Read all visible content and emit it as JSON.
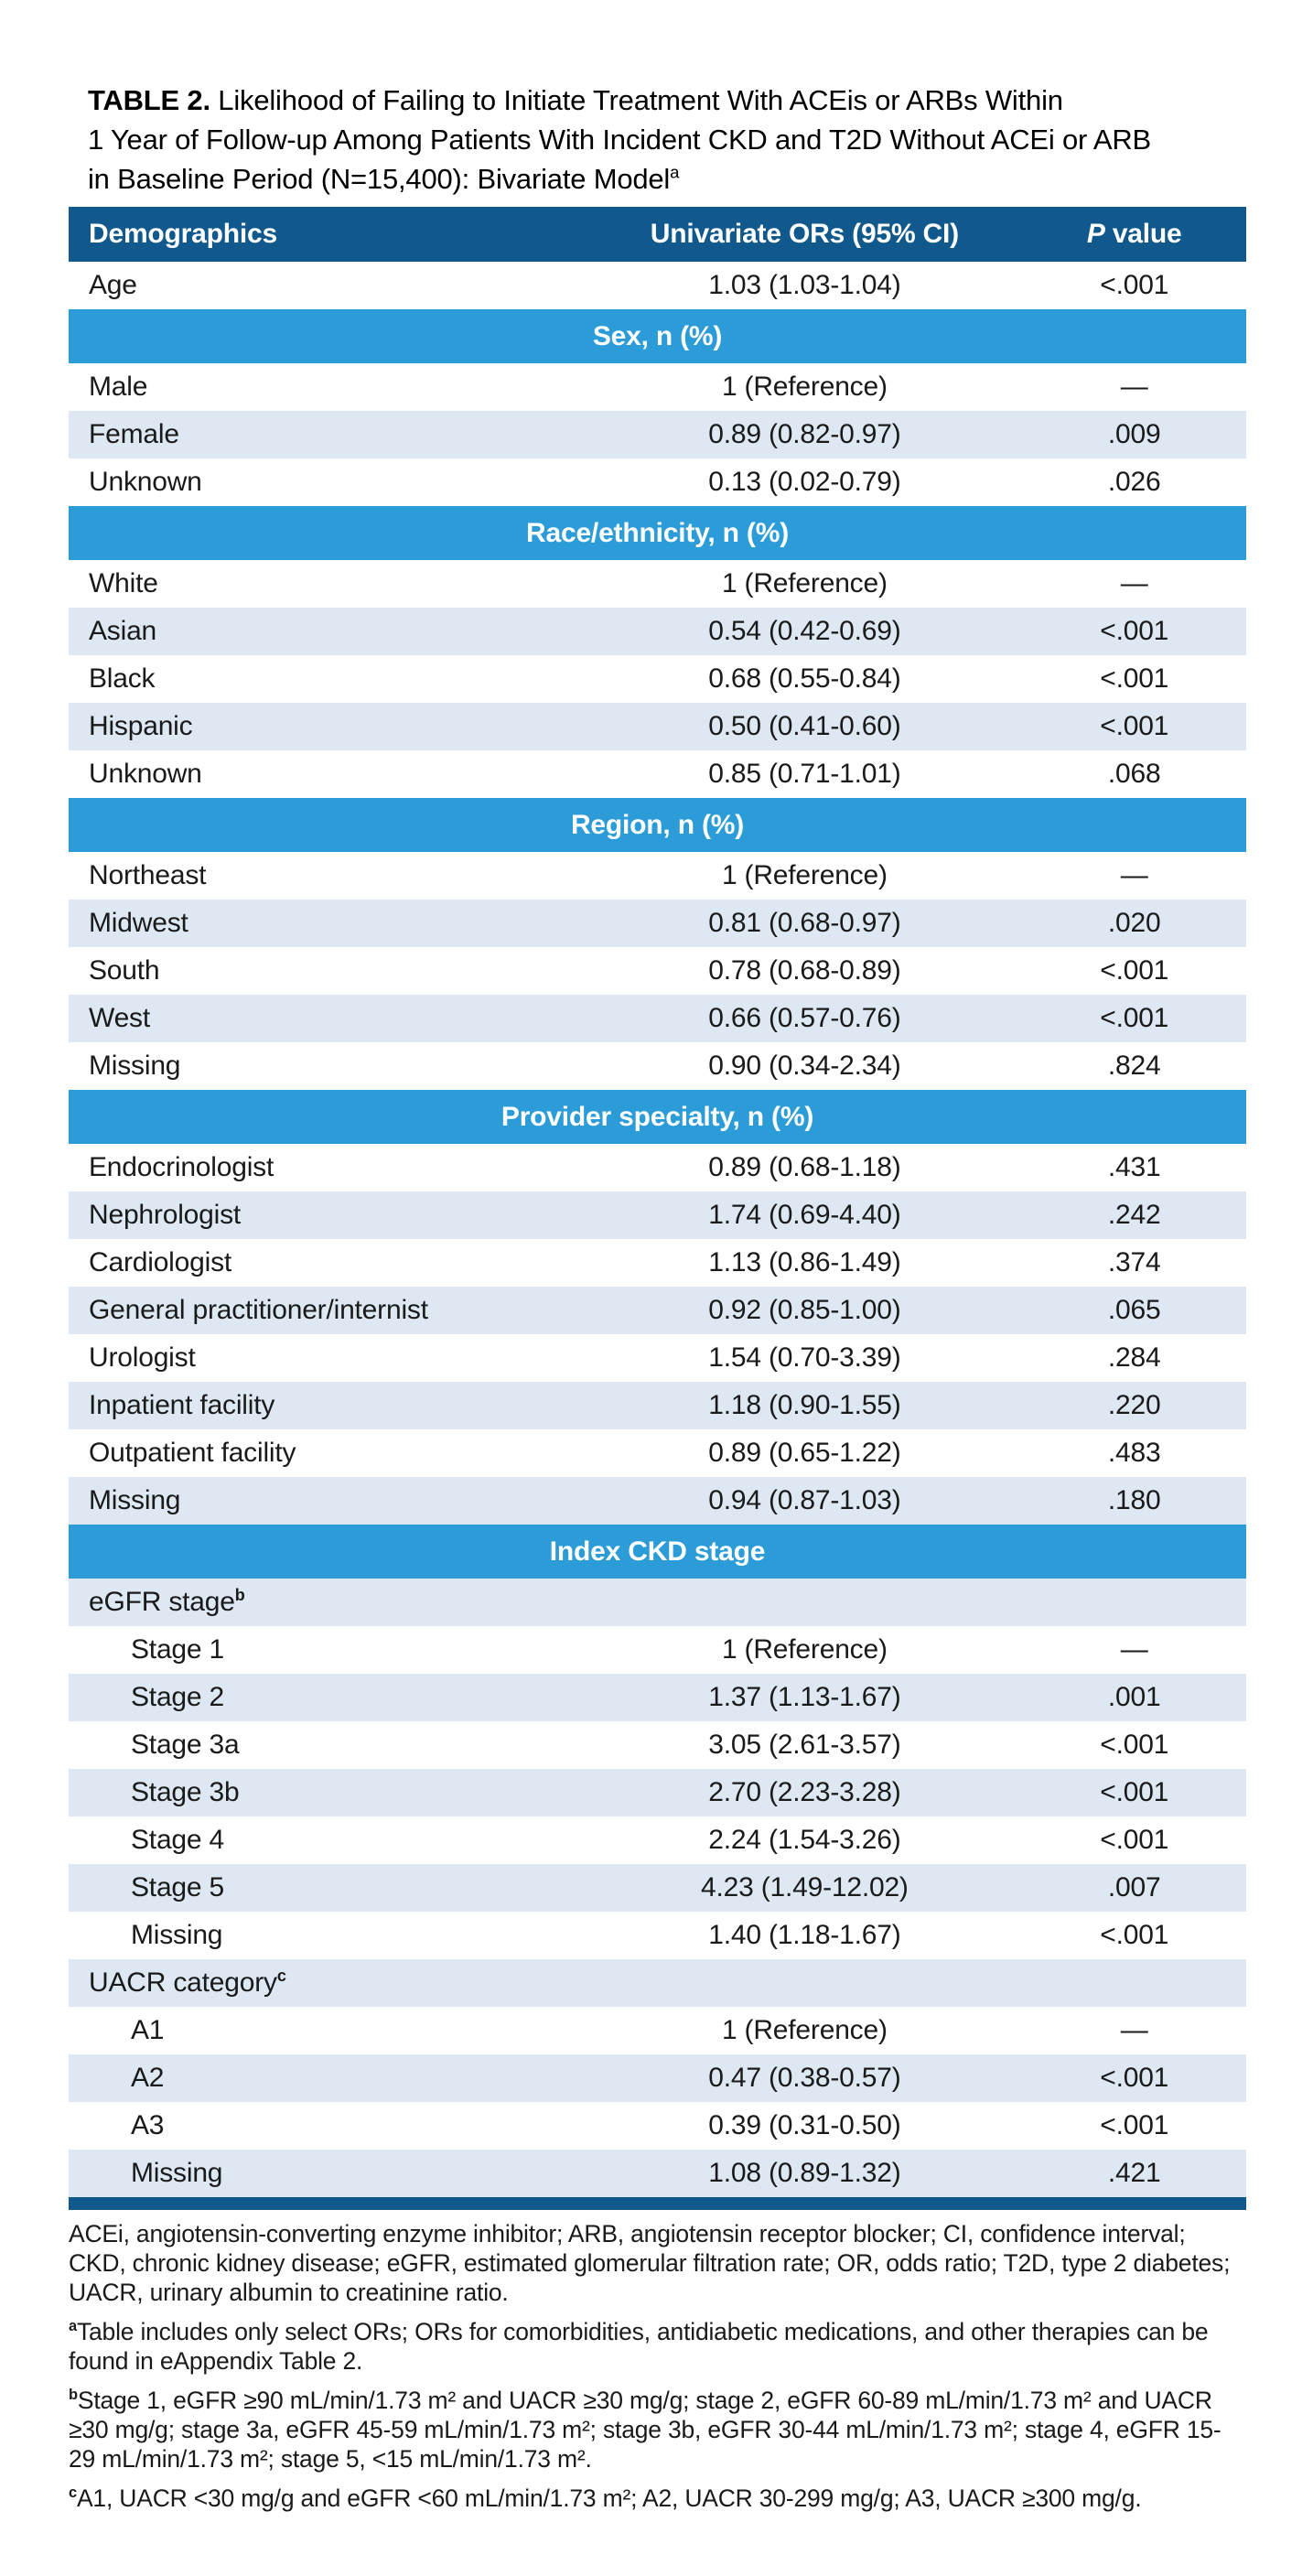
{
  "title": {
    "line1_label": "TABLE 2.",
    "line1_rest": " Likelihood of Failing to Initiate Treatment With ACEis or ARBs Within",
    "line2": "1 Year of Follow-up Among Patients With Incident CKD and T2D Without ACEi or ARB",
    "line3": "in Baseline Period (N=15,400): Bivariate Model",
    "sup": "a"
  },
  "table": {
    "col_demographics": "Demographics",
    "col_or": "Univariate ORs (95% CI)",
    "p_header": {
      "italic": "P",
      "rest": " value"
    },
    "rows": [
      {
        "type": "data",
        "label": "Age",
        "or": "1.03 (1.03-1.04)",
        "p": "<.001",
        "shade": false,
        "indent": false
      },
      {
        "type": "section",
        "label": "Sex, n (%)"
      },
      {
        "type": "data",
        "label": "Male",
        "or": "1 (Reference)",
        "p": "—",
        "shade": false,
        "indent": false
      },
      {
        "type": "data",
        "label": "Female",
        "or": "0.89 (0.82-0.97)",
        "p": ".009",
        "shade": true,
        "indent": false
      },
      {
        "type": "data",
        "label": "Unknown",
        "or": "0.13 (0.02-0.79)",
        "p": ".026",
        "shade": false,
        "indent": false
      },
      {
        "type": "section",
        "label": "Race/ethnicity, n (%)"
      },
      {
        "type": "data",
        "label": "White",
        "or": "1 (Reference)",
        "p": "—",
        "shade": false,
        "indent": false
      },
      {
        "type": "data",
        "label": "Asian",
        "or": "0.54 (0.42-0.69)",
        "p": "<.001",
        "shade": true,
        "indent": false
      },
      {
        "type": "data",
        "label": "Black",
        "or": "0.68 (0.55-0.84)",
        "p": "<.001",
        "shade": false,
        "indent": false
      },
      {
        "type": "data",
        "label": "Hispanic",
        "or": "0.50 (0.41-0.60)",
        "p": "<.001",
        "shade": true,
        "indent": false
      },
      {
        "type": "data",
        "label": "Unknown",
        "or": "0.85 (0.71-1.01)",
        "p": ".068",
        "shade": false,
        "indent": false
      },
      {
        "type": "section",
        "label": "Region, n (%)"
      },
      {
        "type": "data",
        "label": "Northeast",
        "or": "1 (Reference)",
        "p": "—",
        "shade": false,
        "indent": false
      },
      {
        "type": "data",
        "label": "Midwest",
        "or": "0.81 (0.68-0.97)",
        "p": ".020",
        "shade": true,
        "indent": false
      },
      {
        "type": "data",
        "label": "South",
        "or": "0.78 (0.68-0.89)",
        "p": "<.001",
        "shade": false,
        "indent": false
      },
      {
        "type": "data",
        "label": "West",
        "or": "0.66 (0.57-0.76)",
        "p": "<.001",
        "shade": true,
        "indent": false
      },
      {
        "type": "data",
        "label": "Missing",
        "or": "0.90 (0.34-2.34)",
        "p": ".824",
        "shade": false,
        "indent": false
      },
      {
        "type": "section",
        "label": "Provider specialty, n (%)"
      },
      {
        "type": "data",
        "label": "Endocrinologist",
        "or": "0.89 (0.68-1.18)",
        "p": ".431",
        "shade": false,
        "indent": false
      },
      {
        "type": "data",
        "label": "Nephrologist",
        "or": "1.74 (0.69-4.40)",
        "p": ".242",
        "shade": true,
        "indent": false
      },
      {
        "type": "data",
        "label": "Cardiologist",
        "or": "1.13 (0.86-1.49)",
        "p": ".374",
        "shade": false,
        "indent": false
      },
      {
        "type": "data",
        "label": "General practitioner/internist",
        "or": "0.92 (0.85-1.00)",
        "p": ".065",
        "shade": true,
        "indent": false
      },
      {
        "type": "data",
        "label": "Urologist",
        "or": "1.54 (0.70-3.39)",
        "p": ".284",
        "shade": false,
        "indent": false
      },
      {
        "type": "data",
        "label": "Inpatient facility",
        "or": "1.18 (0.90-1.55)",
        "p": ".220",
        "shade": true,
        "indent": false
      },
      {
        "type": "data",
        "label": "Outpatient facility",
        "or": "0.89 (0.65-1.22)",
        "p": ".483",
        "shade": false,
        "indent": false
      },
      {
        "type": "data",
        "label": "Missing",
        "or": "0.94 (0.87-1.03)",
        "p": ".180",
        "shade": true,
        "indent": false
      },
      {
        "type": "section",
        "label": "Index CKD stage"
      },
      {
        "type": "subheader",
        "label": "eGFR stage",
        "sup": "b",
        "shade": true
      },
      {
        "type": "data",
        "label": "Stage 1",
        "or": "1 (Reference)",
        "p": "—",
        "shade": false,
        "indent": true
      },
      {
        "type": "data",
        "label": "Stage 2",
        "or": "1.37 (1.13-1.67)",
        "p": ".001",
        "shade": true,
        "indent": true
      },
      {
        "type": "data",
        "label": "Stage 3a",
        "or": "3.05 (2.61-3.57)",
        "p": "<.001",
        "shade": false,
        "indent": true
      },
      {
        "type": "data",
        "label": "Stage 3b",
        "or": "2.70 (2.23-3.28)",
        "p": "<.001",
        "shade": true,
        "indent": true
      },
      {
        "type": "data",
        "label": "Stage 4",
        "or": "2.24 (1.54-3.26)",
        "p": "<.001",
        "shade": false,
        "indent": true
      },
      {
        "type": "data",
        "label": "Stage 5",
        "or": "4.23 (1.49-12.02)",
        "p": ".007",
        "shade": true,
        "indent": true
      },
      {
        "type": "data",
        "label": "Missing",
        "or": "1.40 (1.18-1.67)",
        "p": "<.001",
        "shade": false,
        "indent": true
      },
      {
        "type": "subheader",
        "label": "UACR category",
        "sup": "c",
        "shade": true
      },
      {
        "type": "data",
        "label": "A1",
        "or": "1 (Reference)",
        "p": "—",
        "shade": false,
        "indent": true
      },
      {
        "type": "data",
        "label": "A2",
        "or": "0.47 (0.38-0.57)",
        "p": "<.001",
        "shade": true,
        "indent": true
      },
      {
        "type": "data",
        "label": "A3",
        "or": "0.39 (0.31-0.50)",
        "p": "<.001",
        "shade": false,
        "indent": true
      },
      {
        "type": "data",
        "label": "Missing",
        "or": "1.08 (0.89-1.32)",
        "p": ".421",
        "shade": true,
        "indent": true
      }
    ]
  },
  "footnotes": {
    "abbreviations": "ACEi, angiotensin-converting enzyme inhibitor; ARB, angiotensin receptor blocker; CI, confidence interval; CKD, chronic kidney disease; eGFR, estimated glomerular filtration rate; OR, odds ratio; T2D, type 2 diabetes; UACR, urinary albumin to creatinine ratio.",
    "notes": [
      {
        "sup": "a",
        "text": "Table includes only select ORs; ORs for comorbidities, antidiabetic medications, and other therapies can be found in eAppendix Table 2."
      },
      {
        "sup": "b",
        "text": "Stage 1, eGFR ≥90 mL/min/1.73 m² and UACR ≥30 mg/g; stage 2, eGFR 60-89 mL/min/1.73 m² and UACR ≥30 mg/g; stage 3a, eGFR 45-59 mL/min/1.73 m²; stage 3b, eGFR 30-44 mL/min/1.73 m²; stage 4, eGFR 15-29 mL/min/1.73 m²; stage 5, <15 mL/min/1.73 m²."
      },
      {
        "sup": "c",
        "text": "A1, UACR <30 mg/g and eGFR <60 mL/min/1.73 m²; A2, UACR 30-299 mg/g; A3, UACR ≥300 mg/g."
      }
    ]
  },
  "colors": {
    "header_navy": "#11598C",
    "section_blue": "#2B9CD8",
    "row_shade_blue": "#DDE8F3"
  }
}
